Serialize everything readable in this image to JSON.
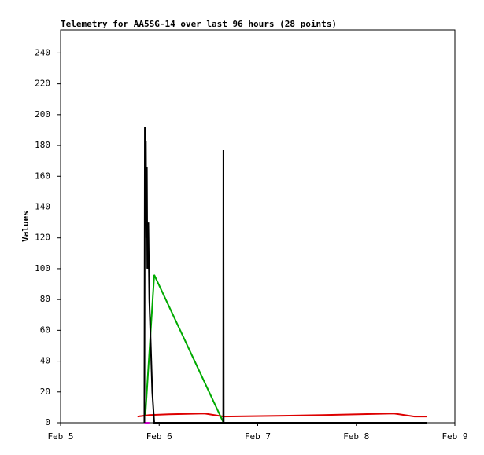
{
  "chart_data": {
    "type": "line",
    "title": "Telemetry for AA5SG-14 over last 96 hours (28 points)",
    "y_label": "Values",
    "xlim": [
      5,
      9
    ],
    "xticks": [
      {
        "value": 5,
        "label": "Feb 5"
      },
      {
        "value": 6,
        "label": "Feb 6"
      },
      {
        "value": 7,
        "label": "Feb 7"
      },
      {
        "value": 8,
        "label": "Feb 8"
      },
      {
        "value": 9,
        "label": "Feb 9"
      }
    ],
    "ylim": [
      0,
      255
    ],
    "yticks": [
      0,
      20,
      40,
      60,
      80,
      100,
      120,
      140,
      160,
      180,
      200,
      220,
      240
    ],
    "series": [
      {
        "color": "#dd0000",
        "x": [
          5.78,
          5.9,
          6.1,
          6.46,
          6.653,
          7.26,
          7.66,
          8.02,
          8.38,
          8.59,
          8.72
        ],
        "values": [
          4,
          5,
          5.5,
          6,
          4,
          4.5,
          5,
          5.5,
          6,
          4,
          4
        ]
      },
      {
        "color": "#cc00cc",
        "x": [
          5.85,
          5.9
        ],
        "values": [
          0,
          0
        ]
      },
      {
        "color": "#00aa00",
        "x": [
          5.86,
          5.95,
          6.653
        ],
        "values": [
          5,
          96,
          0
        ]
      },
      {
        "color": "#000000",
        "x": [
          5.85,
          5.855,
          5.86,
          5.865,
          5.87,
          5.875,
          5.88,
          5.89,
          5.9,
          5.91,
          5.92,
          5.93,
          5.95,
          6.65,
          6.652,
          6.655,
          8.72
        ],
        "values": [
          0,
          192,
          150,
          183,
          120,
          166,
          100,
          130,
          80,
          60,
          40,
          20,
          0,
          0,
          177,
          0,
          0
        ]
      }
    ]
  }
}
